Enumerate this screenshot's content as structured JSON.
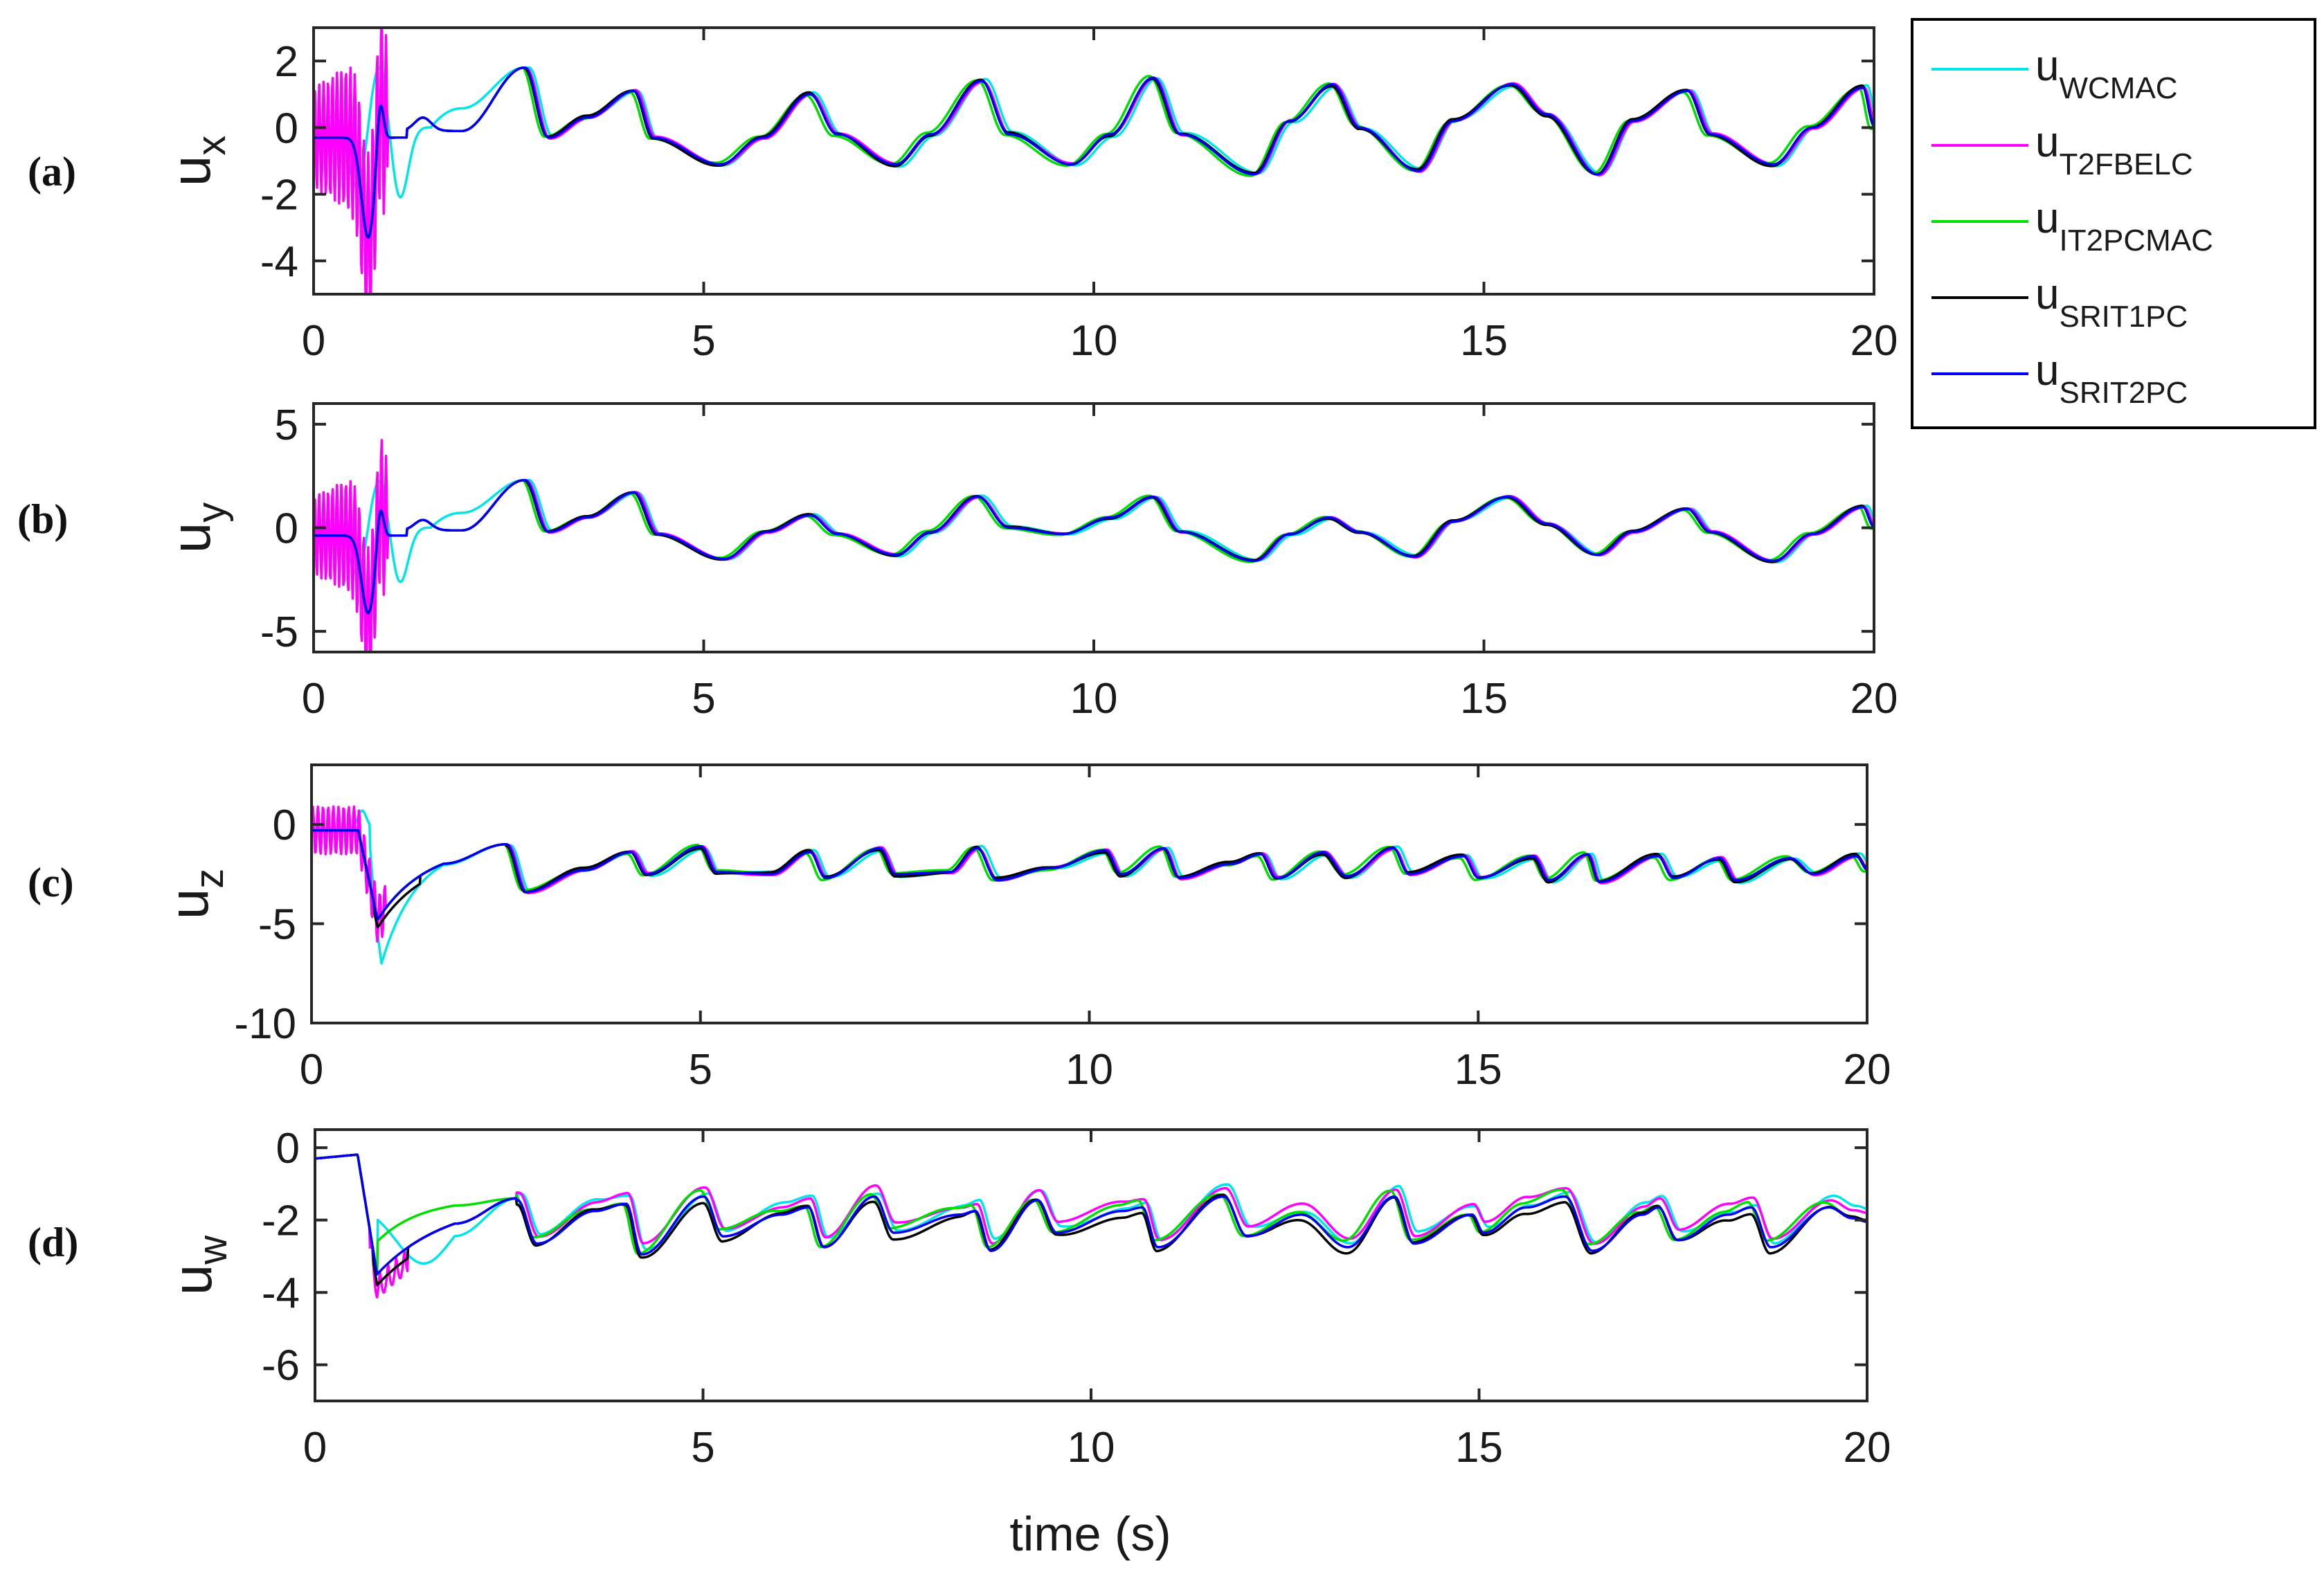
{
  "chart_data": {
    "type": "line",
    "xlabel": "time (s)",
    "x_range": [
      0,
      20
    ],
    "x_ticks": [
      0,
      5,
      10,
      15,
      20
    ],
    "legend": {
      "placement": "top-right-outside",
      "entries": [
        {
          "main": "u",
          "sub": "WCMAC",
          "color": "#00e5e5"
        },
        {
          "main": "u",
          "sub": "T2FBELC",
          "color": "#ff00ff"
        },
        {
          "main": "u",
          "sub": "IT2PCMAC",
          "color": "#00dd00"
        },
        {
          "main": "u",
          "sub": "SRIT1PC",
          "color": "#000000"
        },
        {
          "main": "u",
          "sub": "SRIT2PC",
          "color": "#0000ee"
        }
      ]
    },
    "panels": [
      {
        "tag": "(a)",
        "ylabel_main": "u",
        "ylabel_sub": "x",
        "ylim": [
          -5,
          3
        ],
        "yticks": [
          -4,
          -2,
          0,
          2
        ],
        "pattern": {
          "transient": "xy_a",
          "peaks": [
            [
              2.7,
              1.8
            ],
            [
              3.0,
              -0.3
            ],
            [
              3.5,
              0.3
            ],
            [
              4.1,
              1.1
            ],
            [
              4.35,
              -0.3
            ],
            [
              5.2,
              -1.1
            ],
            [
              5.75,
              -0.3
            ],
            [
              6.35,
              1.0
            ],
            [
              6.7,
              -0.2
            ],
            [
              7.45,
              -1.1
            ],
            [
              7.9,
              -0.2
            ],
            [
              8.55,
              1.4
            ],
            [
              8.9,
              -0.2
            ],
            [
              9.7,
              -1.1
            ],
            [
              10.2,
              -0.2
            ],
            [
              10.75,
              1.5
            ],
            [
              11.1,
              -0.2
            ],
            [
              12.05,
              -1.4
            ],
            [
              12.5,
              0.2
            ],
            [
              13.05,
              1.3
            ],
            [
              13.4,
              0.0
            ],
            [
              14.15,
              -1.3
            ],
            [
              14.6,
              0.2
            ],
            [
              15.35,
              1.3
            ],
            [
              15.8,
              0.4
            ],
            [
              16.45,
              -1.4
            ],
            [
              16.9,
              0.2
            ],
            [
              17.6,
              1.1
            ],
            [
              17.9,
              -0.2
            ],
            [
              18.7,
              -1.1
            ],
            [
              19.2,
              0.0
            ],
            [
              19.85,
              1.2
            ],
            [
              20.0,
              0.0
            ]
          ]
        }
      },
      {
        "tag": "(b)",
        "ylabel_main": "u",
        "ylabel_sub": "y",
        "ylim": [
          -6,
          6
        ],
        "yticks": [
          -5,
          0,
          5
        ],
        "pattern": {
          "transient": "xy_b",
          "peaks": [
            [
              2.7,
              2.3
            ],
            [
              3.0,
              -0.2
            ],
            [
              3.5,
              0.5
            ],
            [
              4.1,
              1.7
            ],
            [
              4.4,
              -0.3
            ],
            [
              5.25,
              -1.5
            ],
            [
              5.8,
              -0.2
            ],
            [
              6.35,
              0.6
            ],
            [
              6.7,
              -0.3
            ],
            [
              7.45,
              -1.3
            ],
            [
              7.9,
              -0.2
            ],
            [
              8.5,
              1.5
            ],
            [
              8.9,
              0.0
            ],
            [
              9.6,
              -0.3
            ],
            [
              10.2,
              0.5
            ],
            [
              10.75,
              1.5
            ],
            [
              11.1,
              -0.2
            ],
            [
              12.05,
              -1.6
            ],
            [
              12.5,
              -0.3
            ],
            [
              13.0,
              0.5
            ],
            [
              13.4,
              -0.2
            ],
            [
              14.1,
              -1.4
            ],
            [
              14.6,
              0.3
            ],
            [
              15.3,
              1.5
            ],
            [
              15.8,
              0.2
            ],
            [
              16.45,
              -1.3
            ],
            [
              16.9,
              -0.2
            ],
            [
              17.6,
              0.9
            ],
            [
              17.9,
              -0.2
            ],
            [
              18.7,
              -1.6
            ],
            [
              19.2,
              -0.3
            ],
            [
              19.85,
              1.0
            ],
            [
              20.0,
              0.0
            ]
          ]
        }
      },
      {
        "tag": "(c)",
        "ylabel_main": "u",
        "ylabel_sub": "z",
        "ylim": [
          -10,
          3
        ],
        "yticks": [
          -10,
          -5,
          0
        ],
        "pattern": {
          "transient": "z",
          "peaks": [
            [
              2.5,
              -1.0
            ],
            [
              2.75,
              -3.4
            ],
            [
              3.5,
              -2.3
            ],
            [
              4.1,
              -1.4
            ],
            [
              4.3,
              -2.5
            ],
            [
              5.0,
              -1.1
            ],
            [
              5.2,
              -2.4
            ],
            [
              5.9,
              -2.5
            ],
            [
              6.4,
              -1.4
            ],
            [
              6.6,
              -2.7
            ],
            [
              7.3,
              -1.2
            ],
            [
              7.5,
              -2.5
            ],
            [
              8.2,
              -2.4
            ],
            [
              8.55,
              -1.2
            ],
            [
              8.8,
              -2.8
            ],
            [
              9.5,
              -2.2
            ],
            [
              10.2,
              -1.3
            ],
            [
              10.4,
              -2.5
            ],
            [
              10.95,
              -1.2
            ],
            [
              11.15,
              -2.7
            ],
            [
              11.8,
              -2.0
            ],
            [
              12.2,
              -1.5
            ],
            [
              12.4,
              -2.7
            ],
            [
              13.0,
              -1.4
            ],
            [
              13.3,
              -2.6
            ],
            [
              13.9,
              -1.2
            ],
            [
              14.1,
              -2.5
            ],
            [
              14.8,
              -1.6
            ],
            [
              15.0,
              -2.7
            ],
            [
              15.7,
              -1.6
            ],
            [
              15.9,
              -2.8
            ],
            [
              16.4,
              -1.5
            ],
            [
              16.55,
              -2.9
            ],
            [
              17.3,
              -1.6
            ],
            [
              17.5,
              -2.7
            ],
            [
              18.1,
              -1.7
            ],
            [
              18.3,
              -2.8
            ],
            [
              19.0,
              -1.7
            ],
            [
              19.3,
              -2.5
            ],
            [
              19.85,
              -1.6
            ],
            [
              20.0,
              -2.3
            ]
          ]
        }
      },
      {
        "tag": "(d)",
        "ylabel_main": "u",
        "ylabel_sub": "w",
        "ylim": [
          -7,
          0.5
        ],
        "yticks": [
          -6,
          -4,
          -2,
          0
        ],
        "pattern": {
          "transient": "w",
          "peaks": [
            [
              2.6,
              -1.4
            ],
            [
              2.85,
              -2.6
            ],
            [
              3.6,
              -1.7
            ],
            [
              4.0,
              -1.5
            ],
            [
              4.2,
              -2.9
            ],
            [
              5.0,
              -1.3
            ],
            [
              5.25,
              -2.4
            ],
            [
              6.0,
              -1.8
            ],
            [
              6.35,
              -1.6
            ],
            [
              6.55,
              -2.7
            ],
            [
              7.2,
              -1.3
            ],
            [
              7.45,
              -2.3
            ],
            [
              8.3,
              -1.8
            ],
            [
              8.5,
              -1.7
            ],
            [
              8.7,
              -2.8
            ],
            [
              9.3,
              -1.4
            ],
            [
              9.55,
              -2.3
            ],
            [
              10.4,
              -1.7
            ],
            [
              10.65,
              -1.6
            ],
            [
              10.85,
              -2.7
            ],
            [
              11.7,
              -1.3
            ],
            [
              12.0,
              -2.4
            ],
            [
              12.7,
              -1.8
            ],
            [
              13.3,
              -2.7
            ],
            [
              13.9,
              -1.3
            ],
            [
              14.15,
              -2.6
            ],
            [
              14.9,
              -1.8
            ],
            [
              15.05,
              -2.3
            ],
            [
              15.6,
              -1.6
            ],
            [
              16.1,
              -1.3
            ],
            [
              16.45,
              -2.8
            ],
            [
              17.1,
              -1.8
            ],
            [
              17.3,
              -1.6
            ],
            [
              17.55,
              -2.5
            ],
            [
              18.2,
              -1.8
            ],
            [
              18.5,
              -1.6
            ],
            [
              18.75,
              -2.7
            ],
            [
              19.5,
              -1.6
            ],
            [
              19.8,
              -1.9
            ],
            [
              20.0,
              -2.0
            ]
          ]
        }
      }
    ]
  }
}
